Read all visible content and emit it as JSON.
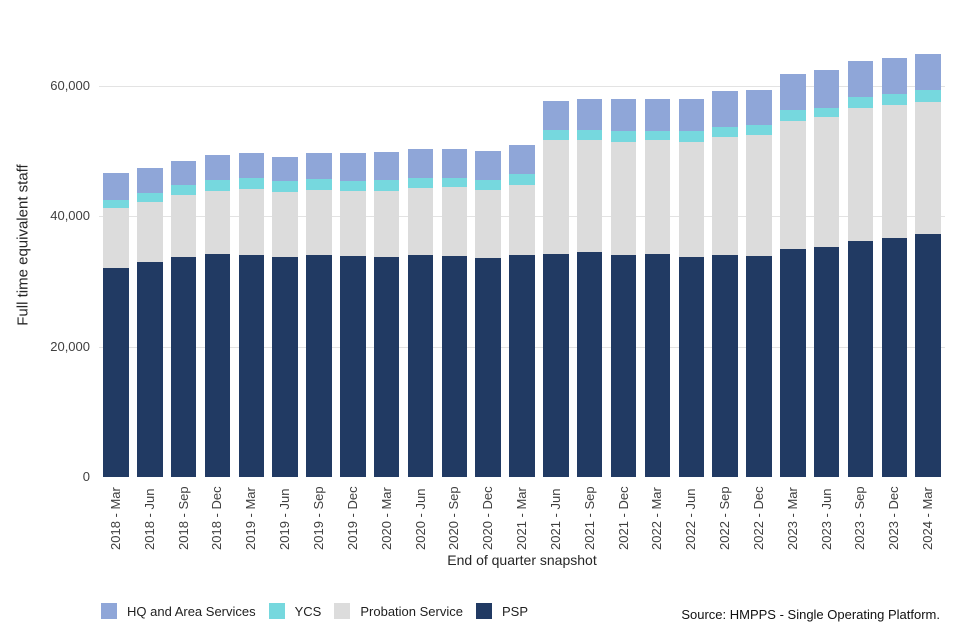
{
  "chart_data": {
    "type": "bar",
    "stacked": true,
    "xlabel": "End of quarter snapshot",
    "ylabel": "Full time equivalent staff",
    "grid": "horizontal",
    "legend_position": "bottom",
    "ylim": [
      0,
      65000
    ],
    "yticks": [
      {
        "value": 0,
        "label": "0"
      },
      {
        "value": 20000,
        "label": "20,000"
      },
      {
        "value": 40000,
        "label": "40,000"
      },
      {
        "value": 60000,
        "label": "60,000"
      }
    ],
    "categories": [
      "2018 - Mar",
      "2018 - Jun",
      "2018 - Sep",
      "2018 - Dec",
      "2019 - Mar",
      "2019 - Jun",
      "2019 - Sep",
      "2019 - Dec",
      "2020 - Mar",
      "2020 - Jun",
      "2020 - Sep",
      "2020 - Dec",
      "2021 - Mar",
      "2021 - Jun",
      "2021 - Sep",
      "2021 - Dec",
      "2022 - Mar",
      "2022 - Jun",
      "2022 - Sep",
      "2022 - Dec",
      "2023 - Mar",
      "2023 - Jun",
      "2023 - Sep",
      "2023 - Dec",
      "2024 - Mar"
    ],
    "series": [
      {
        "name": "PSP",
        "color": "#213a63",
        "values": [
          32100,
          33000,
          33700,
          34200,
          34100,
          33700,
          34100,
          33900,
          33700,
          34100,
          33900,
          33500,
          34000,
          34200,
          34500,
          34100,
          34200,
          33700,
          34100,
          33900,
          34900,
          35200,
          36200,
          36600,
          37300
        ]
      },
      {
        "name": "Probation Service",
        "color": "#dcdcdc",
        "values": [
          9100,
          9100,
          9500,
          9700,
          10000,
          10000,
          9900,
          10000,
          10200,
          10200,
          10500,
          10500,
          10800,
          17400,
          17100,
          17300,
          17400,
          17600,
          18000,
          18500,
          19700,
          19900,
          20300,
          20400,
          20200
        ]
      },
      {
        "name": "YCS",
        "color": "#76d8de",
        "values": [
          1300,
          1500,
          1600,
          1600,
          1700,
          1600,
          1600,
          1500,
          1600,
          1500,
          1400,
          1500,
          1700,
          1600,
          1600,
          1700,
          1500,
          1700,
          1500,
          1500,
          1700,
          1500,
          1700,
          1700,
          1800
        ]
      },
      {
        "name": "HQ and Area Services",
        "color": "#8fa6d8",
        "values": [
          4100,
          3800,
          3700,
          3900,
          3900,
          3800,
          4100,
          4300,
          4300,
          4500,
          4400,
          4400,
          4400,
          4500,
          4700,
          4800,
          4900,
          4900,
          5500,
          5400,
          5500,
          5800,
          5500,
          5500,
          5600
        ]
      }
    ],
    "legend_order": [
      "HQ and Area Services",
      "YCS",
      "Probation Service",
      "PSP"
    ]
  },
  "source_note": "Source: HMPPS - Single Operating Platform."
}
